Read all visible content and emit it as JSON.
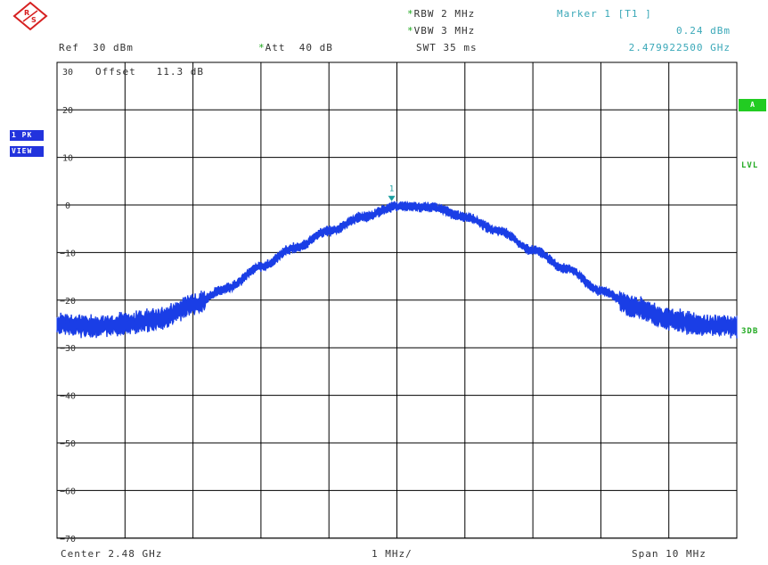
{
  "header": {
    "rbw_label": "RBW",
    "rbw_value": "2 MHz",
    "vbw_label": "VBW",
    "vbw_value": "3 MHz",
    "swt_label": "SWT",
    "swt_value": "35 ms",
    "ref_label": "Ref",
    "ref_value": "30 dBm",
    "att_label": "Att",
    "att_value": "40 dB",
    "offset_label": "Offset",
    "offset_value": "11.3 dB",
    "star_mark": "*"
  },
  "marker": {
    "title": "Marker 1 [T1 ]",
    "level": "0.24 dBm",
    "frequency": "2.479922500 GHz",
    "label": "1"
  },
  "side_left": {
    "trace_mode": "1 PK",
    "view": "VIEW"
  },
  "side_right": {
    "a": "A",
    "lvl": "LVL",
    "threedb": "3DB"
  },
  "footer": {
    "center": "Center 2.48 GHz",
    "div": "1 MHz/",
    "span": "Span 10 MHz"
  },
  "colors": {
    "trace": "#1a3ee6",
    "grid": "#000000",
    "marker": "#1a9fa0",
    "accent_green": "#22cc22",
    "button_blue": "#2233dd"
  },
  "chart_data": {
    "type": "line",
    "title": "",
    "xlabel": "",
    "ylabel": "",
    "x_unit": "GHz",
    "y_unit": "dBm",
    "xlim": [
      2.475,
      2.485
    ],
    "ylim": [
      -75,
      35
    ],
    "y_ticks": [
      30,
      20,
      10,
      0,
      -10,
      -20,
      -30,
      -40,
      -50,
      -60,
      -70
    ],
    "grid": true,
    "series": [
      {
        "x": [
          2.475,
          2.4755,
          2.476,
          2.4765,
          2.477,
          2.4775,
          2.478,
          2.4785,
          2.479,
          2.4795,
          2.48,
          2.4805,
          2.481,
          2.4815,
          2.482,
          2.4825,
          2.483,
          2.4835,
          2.484,
          2.4845,
          2.485
        ],
        "values": [
          -25,
          -25.5,
          -25,
          -24,
          -21,
          -17.5,
          -13,
          -9,
          -5.5,
          -2.5,
          -0.3,
          -0.5,
          -2.5,
          -5.5,
          -9.5,
          -13.5,
          -18,
          -21.5,
          -24,
          -25.3,
          -25.5
        ]
      }
    ],
    "marker": {
      "x": 2.4799225,
      "y": 0.24
    }
  }
}
